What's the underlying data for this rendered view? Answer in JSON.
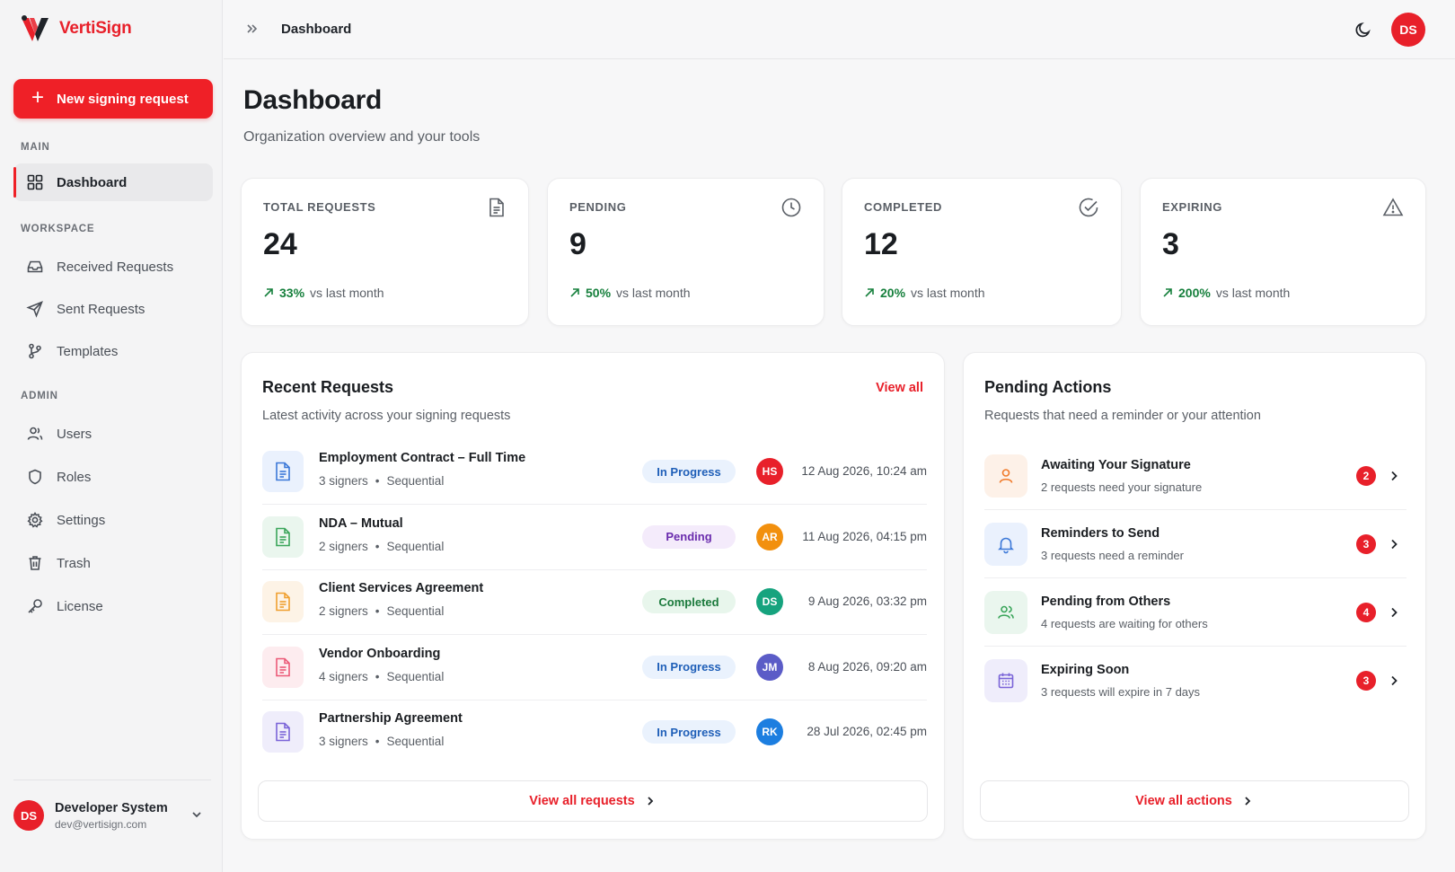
{
  "app": {
    "name": "VertiSign",
    "brand_color": "#e8202a"
  },
  "sidebar": {
    "new_request_label": "New signing request",
    "sections": {
      "main": "MAIN",
      "workspace": "WORKSPACE",
      "admin": "ADMIN"
    },
    "items": {
      "dashboard": "Dashboard",
      "received": "Received Requests",
      "sent": "Sent Requests",
      "templates": "Templates",
      "users": "Users",
      "roles": "Roles",
      "settings": "Settings",
      "trash": "Trash",
      "license": "License"
    },
    "user": {
      "initials": "DS",
      "name": "Developer System",
      "email": "dev@vertisign.com"
    }
  },
  "header": {
    "breadcrumb": "Dashboard",
    "avatar_initials": "DS"
  },
  "page": {
    "title": "Dashboard",
    "subtitle": "Organization overview and your tools"
  },
  "stats": [
    {
      "label": "TOTAL REQUESTS",
      "value": "24",
      "pct": "33%",
      "suffix": "vs last month",
      "icon": "document-icon"
    },
    {
      "label": "PENDING",
      "value": "9",
      "pct": "50%",
      "suffix": "vs last month",
      "icon": "clock-icon"
    },
    {
      "label": "COMPLETED",
      "value": "12",
      "pct": "20%",
      "suffix": "vs last month",
      "icon": "check-circle-icon"
    },
    {
      "label": "EXPIRING",
      "value": "3",
      "pct": "200%",
      "suffix": "vs last month",
      "icon": "warning-icon"
    }
  ],
  "recent": {
    "title": "Recent Requests",
    "subtitle": "Latest activity across your signing requests",
    "view_all": "View all",
    "footer": "View all requests",
    "rows": [
      {
        "name": "Employment Contract – Full Time",
        "signers": "3 signers",
        "mode": "Sequential",
        "status": "In Progress",
        "initials": "HS",
        "date": "12 Aug 2026, 10:24 am",
        "tile_color": "#eaf1fd",
        "icon_color": "#3b78d8",
        "avatar_color": "#e8202a"
      },
      {
        "name": "NDA – Mutual",
        "signers": "2 signers",
        "mode": "Sequential",
        "status": "Pending",
        "initials": "AR",
        "date": "11 Aug 2026, 04:15 pm",
        "tile_color": "#eaf6ee",
        "icon_color": "#3aa55a",
        "avatar_color": "#f2900e"
      },
      {
        "name": "Client Services Agreement",
        "signers": "2 signers",
        "mode": "Sequential",
        "status": "Completed",
        "initials": "DS",
        "date": "9 Aug 2026, 03:32 pm",
        "tile_color": "#fdf3e6",
        "icon_color": "#f0a030",
        "avatar_color": "#16a37e"
      },
      {
        "name": "Vendor Onboarding",
        "signers": "4 signers",
        "mode": "Sequential",
        "status": "In Progress",
        "initials": "JM",
        "date": "8 Aug 2026, 09:20 am",
        "tile_color": "#fdecef",
        "icon_color": "#ec5a78",
        "avatar_color": "#5b5cc7"
      },
      {
        "name": "Partnership Agreement",
        "signers": "3 signers",
        "mode": "Sequential",
        "status": "In Progress",
        "initials": "RK",
        "date": "28 Jul 2026, 02:45 pm",
        "tile_color": "#efedfb",
        "icon_color": "#7a64d8",
        "avatar_color": "#1c7ee0"
      }
    ]
  },
  "pending": {
    "title": "Pending Actions",
    "subtitle": "Requests that need a reminder or your attention",
    "footer": "View all actions",
    "rows": [
      {
        "name": "Awaiting Your Signature",
        "desc": "2 requests need your signature",
        "count": "2",
        "icon": "user-icon",
        "tile_color": "#fdf1e8",
        "icon_color": "#f07a2a"
      },
      {
        "name": "Reminders to Send",
        "desc": "3 requests need a reminder",
        "count": "3",
        "icon": "bell-icon",
        "tile_color": "#eaf1fd",
        "icon_color": "#3b78d8"
      },
      {
        "name": "Pending from Others",
        "desc": "4 requests are waiting for others",
        "count": "4",
        "icon": "users-icon",
        "tile_color": "#eaf6ee",
        "icon_color": "#3aa55a"
      },
      {
        "name": "Expiring Soon",
        "desc": "3 requests will expire in 7 days",
        "count": "3",
        "icon": "calendar-icon",
        "tile_color": "#efedfb",
        "icon_color": "#7a64d8"
      }
    ]
  }
}
